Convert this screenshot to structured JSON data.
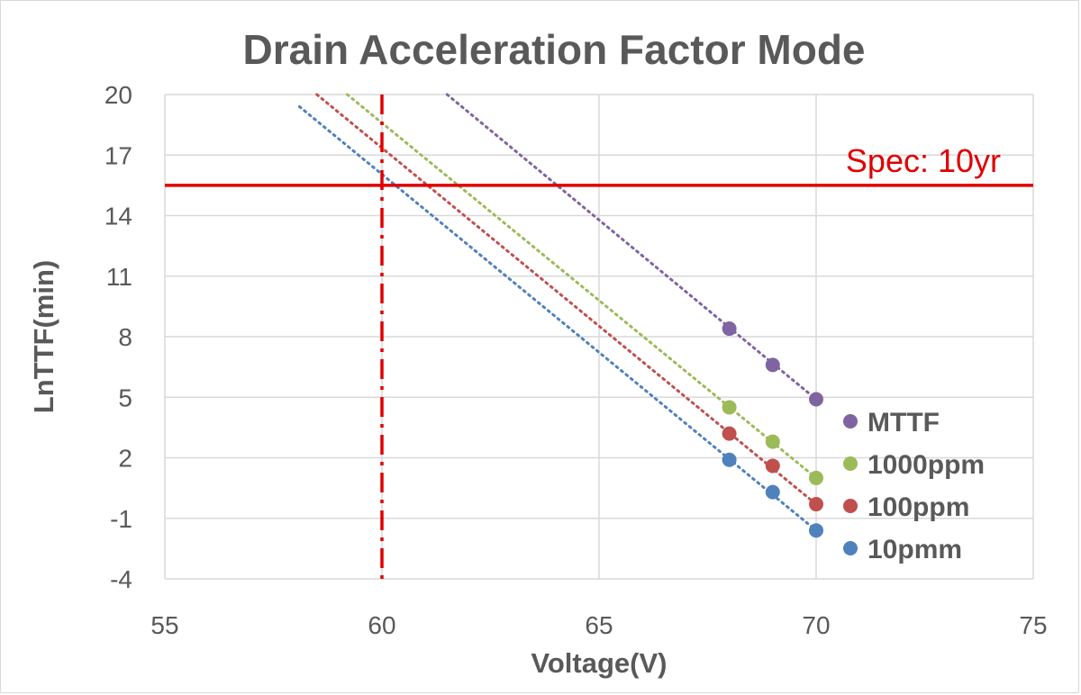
{
  "chart_data": {
    "type": "scatter",
    "title": "Drain Acceleration Factor Mode",
    "xlabel": "Voltage(V)",
    "ylabel": "LnTTF(min)",
    "xlim": [
      55,
      75
    ],
    "ylim": [
      -4,
      20
    ],
    "xticks": [
      "55",
      "60",
      "65",
      "70",
      "75"
    ],
    "yticks": [
      "20",
      "17",
      "14",
      "11",
      "8",
      "5",
      "2",
      "-1",
      "-4"
    ],
    "grid": true,
    "legend_position": "right",
    "series": [
      {
        "name": "MTTF",
        "color": "#8064A2",
        "points": [
          {
            "x": 68,
            "y": 8.4
          },
          {
            "x": 69,
            "y": 6.6
          },
          {
            "x": 70,
            "y": 4.9
          }
        ],
        "trendline": {
          "x_from": 61.5,
          "y_from": 20,
          "x_to": 70,
          "y_to": 4.9
        }
      },
      {
        "name": "1000ppm",
        "color": "#9BBB59",
        "points": [
          {
            "x": 68,
            "y": 4.5
          },
          {
            "x": 69,
            "y": 2.8
          },
          {
            "x": 70,
            "y": 1.0
          }
        ],
        "trendline": {
          "x_from": 59.2,
          "y_from": 20,
          "x_to": 70,
          "y_to": 1.0
        }
      },
      {
        "name": "100ppm",
        "color": "#C0504D",
        "points": [
          {
            "x": 68,
            "y": 3.2
          },
          {
            "x": 69,
            "y": 1.6
          },
          {
            "x": 70,
            "y": -0.3
          }
        ],
        "trendline": {
          "x_from": 58.5,
          "y_from": 20,
          "x_to": 70,
          "y_to": -0.3
        }
      },
      {
        "name": "10pmm",
        "color": "#4F81BD",
        "points": [
          {
            "x": 68,
            "y": 1.9
          },
          {
            "x": 69,
            "y": 0.3
          },
          {
            "x": 70,
            "y": -1.6
          }
        ],
        "trendline": {
          "x_from": 58.1,
          "y_from": 19.4,
          "x_to": 70,
          "y_to": -1.6
        }
      }
    ],
    "annotations": {
      "spec_line": {
        "label": "Spec: 10yr",
        "y": 15.5,
        "color": "#E00000"
      },
      "voltage_line": {
        "x": 60,
        "color": "#E00000"
      }
    }
  }
}
